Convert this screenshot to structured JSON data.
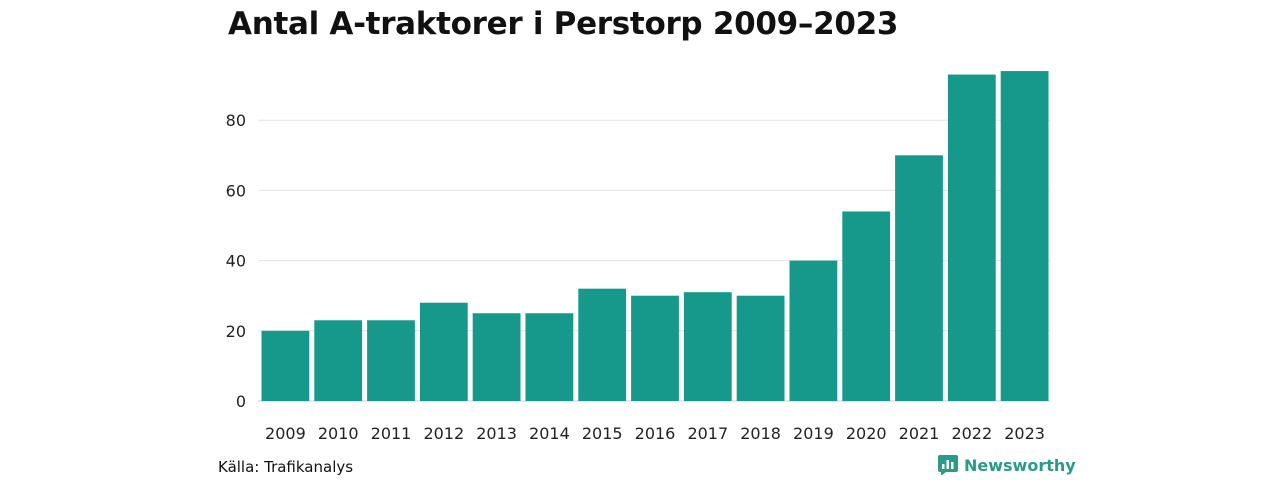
{
  "chart_data": {
    "type": "bar",
    "title": "Antal A-traktorer i Perstorp 2009–2023",
    "xlabel": "",
    "ylabel": "",
    "categories": [
      "2009",
      "2010",
      "2011",
      "2012",
      "2013",
      "2014",
      "2015",
      "2016",
      "2017",
      "2018",
      "2019",
      "2020",
      "2021",
      "2022",
      "2023"
    ],
    "values": [
      20,
      23,
      23,
      28,
      25,
      25,
      32,
      30,
      31,
      30,
      40,
      54,
      70,
      93,
      94
    ],
    "ylim": [
      0,
      100
    ],
    "yticks": [
      0,
      20,
      40,
      60,
      80
    ],
    "grid": true,
    "bar_color": "#16998a",
    "grid_color": "#e3e3e3",
    "source": "Källa: Trafikanalys"
  },
  "brand": {
    "name": "Newsworthy",
    "icon": "newsworthy-logo-icon",
    "color": "#2a9a8b"
  }
}
